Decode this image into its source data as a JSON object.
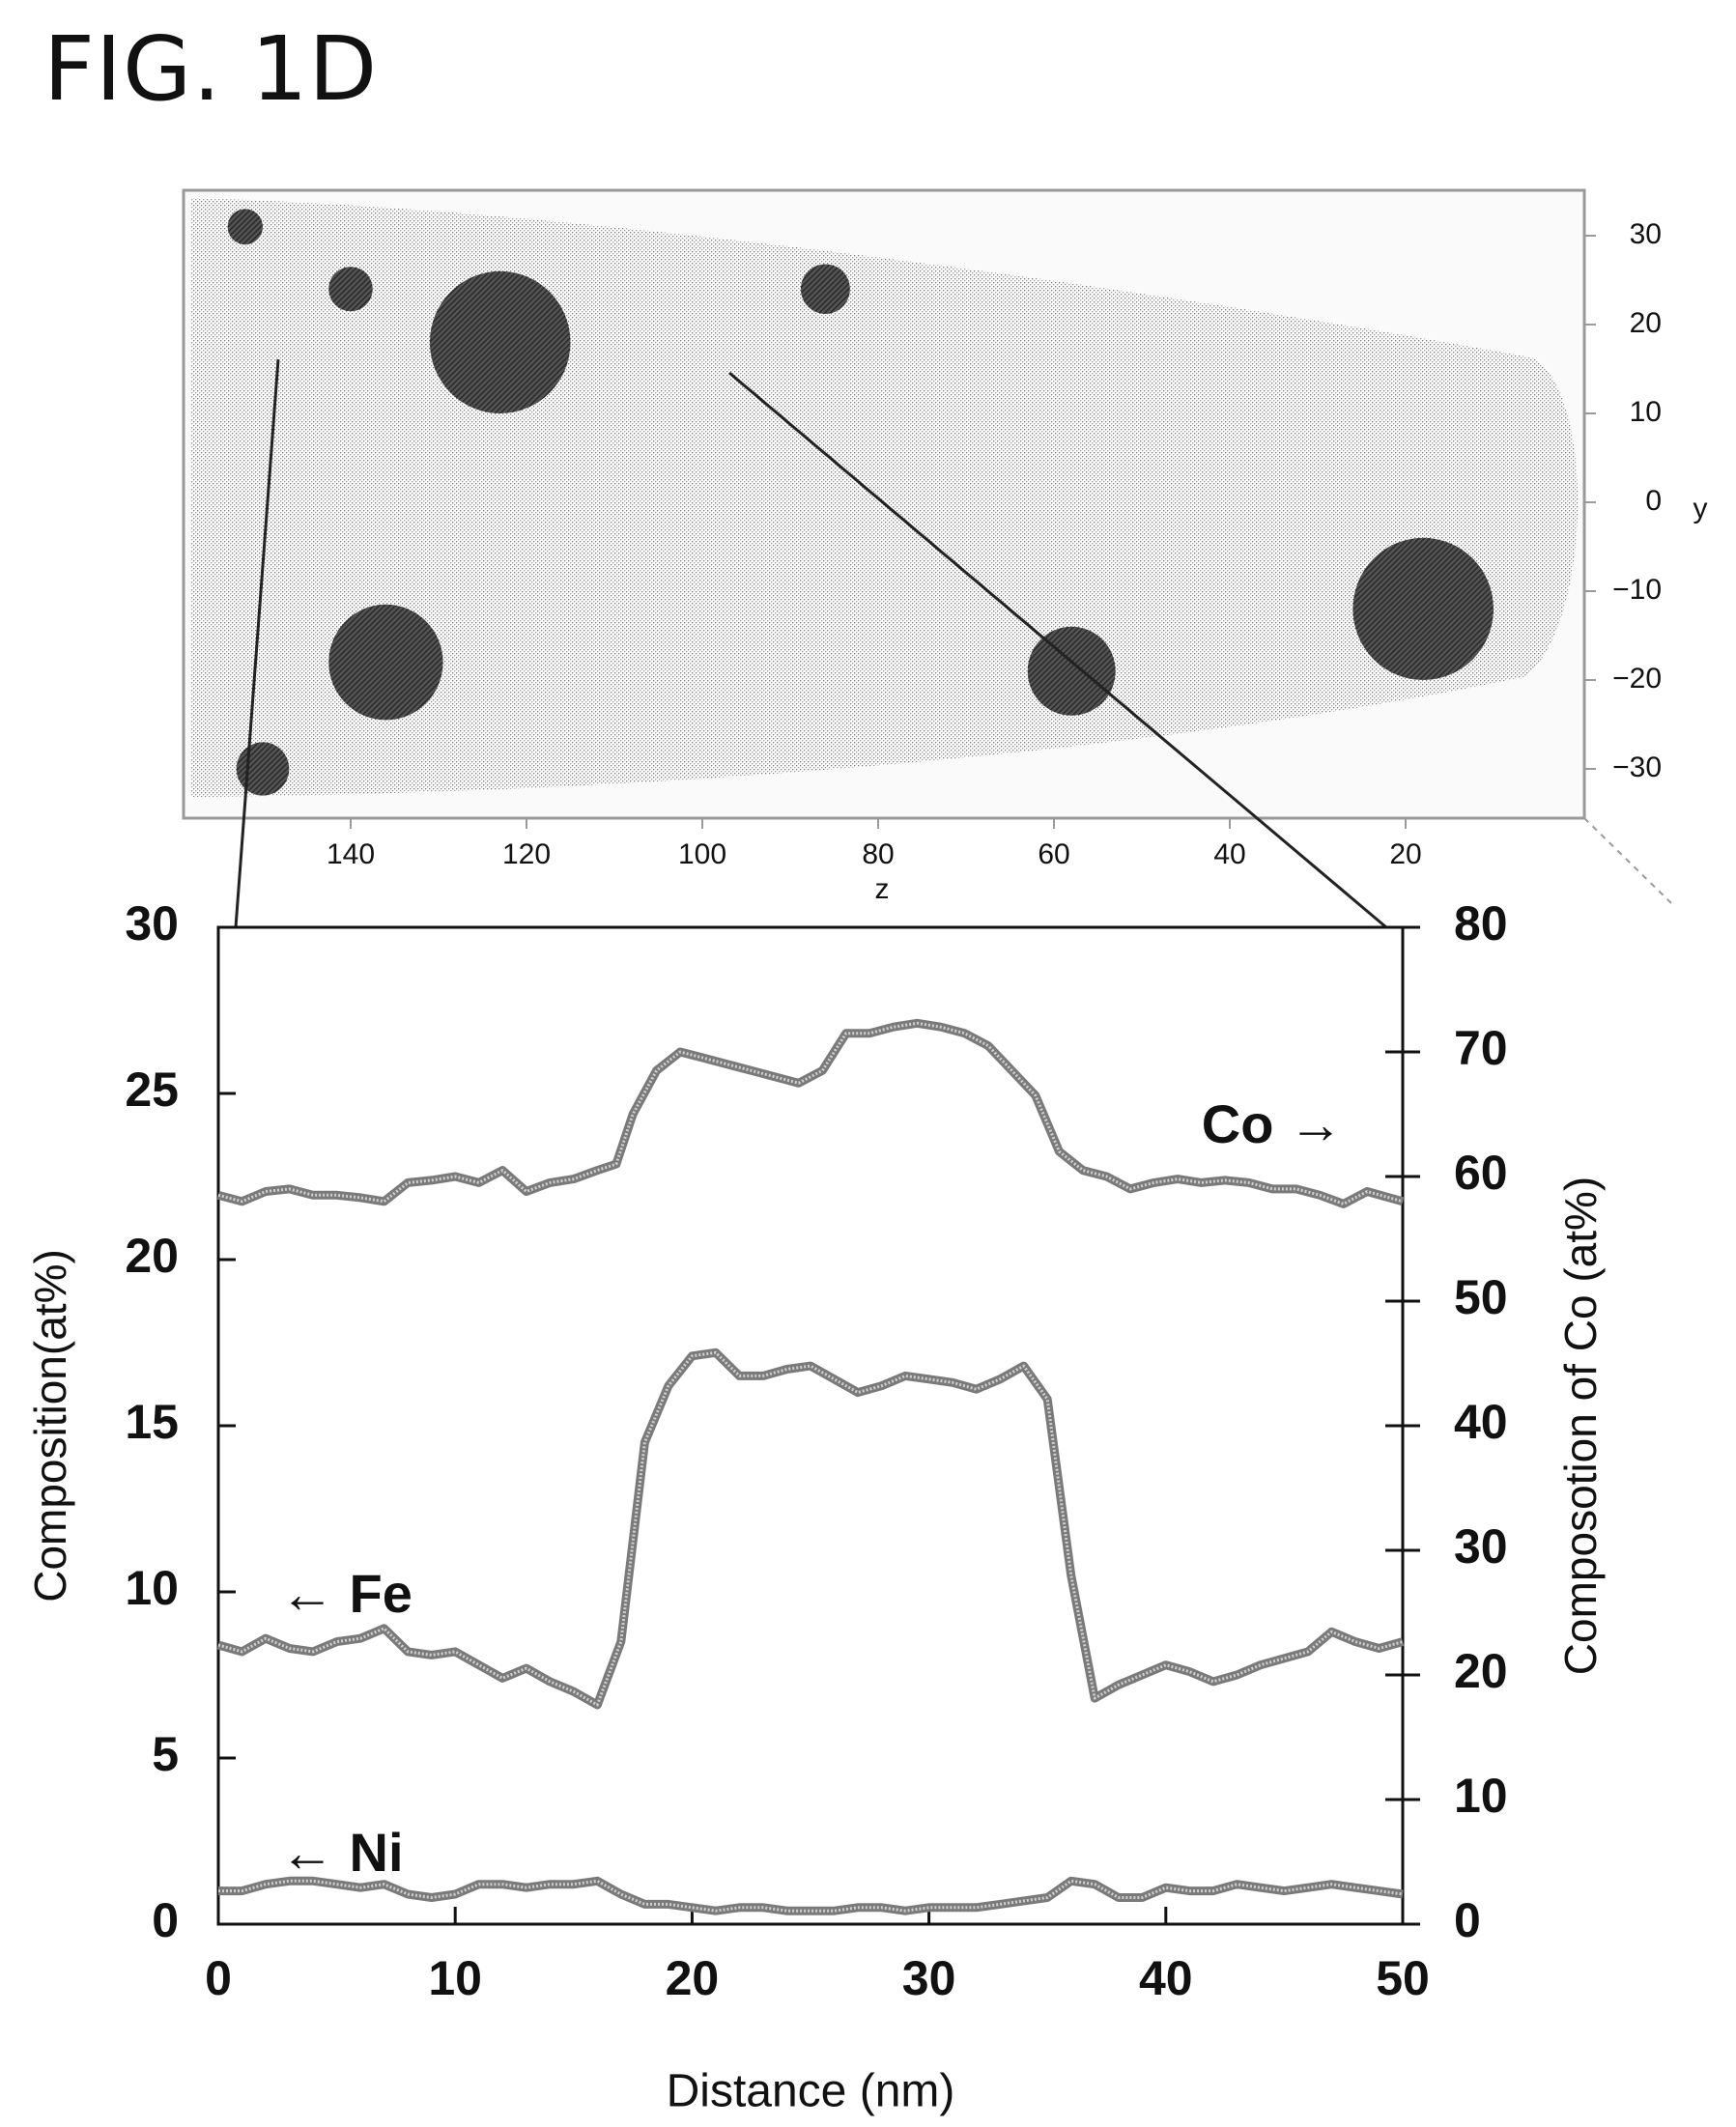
{
  "figure": {
    "title": "FIG. 1D"
  },
  "map": {
    "x_label": "z",
    "y_label": "y",
    "x_ticks": [
      140,
      120,
      100,
      80,
      60,
      40,
      20
    ],
    "y_ticks": [
      30,
      20,
      10,
      0,
      -10,
      -20,
      -30
    ],
    "particles": [
      {
        "z": 152,
        "y": 31,
        "r": 2
      },
      {
        "z": 140,
        "y": 24,
        "r": 2.5
      },
      {
        "z": 123,
        "y": 18,
        "r": 8
      },
      {
        "z": 86,
        "y": 24,
        "r": 2.8
      },
      {
        "z": 136,
        "y": -18,
        "r": 6.5
      },
      {
        "z": 58,
        "y": -19,
        "r": 5
      },
      {
        "z": 18,
        "y": -12,
        "r": 8
      },
      {
        "z": 150,
        "y": -30,
        "r": 3
      }
    ]
  },
  "chart_data": {
    "type": "line",
    "xlabel": "Distance (nm)",
    "ylabel": "Composition(at%)",
    "y2label": "Composotion of Co (at%)",
    "xlim": [
      0,
      50
    ],
    "ylim": [
      0,
      30
    ],
    "y2lim": [
      0,
      80
    ],
    "x_ticks": [
      0,
      10,
      20,
      30,
      40,
      50
    ],
    "y_ticks": [
      0,
      5,
      10,
      15,
      20,
      25,
      30
    ],
    "y2_ticks": [
      0,
      10,
      20,
      30,
      40,
      50,
      60,
      70,
      80
    ],
    "series": [
      {
        "name": "Co",
        "axis": "right",
        "annotation": "Co →",
        "x": [
          0,
          1,
          2,
          3,
          4,
          5,
          6,
          7,
          8,
          9,
          10,
          11,
          12,
          13,
          14,
          15,
          16,
          16.8,
          17.5,
          18.5,
          19.5,
          20.5,
          21.5,
          22.5,
          23.5,
          24.5,
          25.5,
          26.5,
          27.5,
          28.5,
          29.5,
          30.5,
          31.5,
          32.5,
          33.5,
          34.5,
          35.5,
          36.5,
          37.5,
          38.5,
          39.5,
          40.5,
          41.5,
          42.5,
          43.5,
          44.5,
          45.5,
          46.5,
          47.5,
          48.5,
          50
        ],
        "values": [
          58.5,
          58.0,
          58.8,
          59.0,
          58.5,
          58.5,
          58.3,
          58.0,
          59.5,
          59.7,
          60.0,
          59.5,
          60.5,
          58.8,
          59.5,
          59.8,
          60.5,
          61.0,
          65.0,
          68.5,
          70.0,
          69.5,
          69.0,
          68.5,
          68.0,
          67.5,
          68.5,
          71.5,
          71.5,
          72.0,
          72.3,
          72.0,
          71.5,
          70.5,
          68.5,
          66.5,
          62.0,
          60.5,
          60.0,
          59.0,
          59.5,
          59.8,
          59.5,
          59.7,
          59.5,
          59.0,
          59.0,
          58.5,
          57.8,
          58.8,
          58.0
        ]
      },
      {
        "name": "Fe",
        "axis": "left",
        "annotation": "← Fe",
        "x": [
          0,
          1,
          2,
          3,
          4,
          5,
          6,
          7,
          8,
          9,
          10,
          11,
          12,
          13,
          14,
          15,
          16,
          17,
          18,
          19,
          20,
          21,
          22,
          23,
          24,
          25,
          26,
          27,
          28,
          29,
          30,
          31,
          32,
          33,
          34,
          35,
          36,
          37,
          38,
          39,
          40,
          41,
          42,
          43,
          44,
          45,
          46,
          47,
          48,
          49,
          50
        ],
        "values": [
          8.4,
          8.2,
          8.6,
          8.3,
          8.2,
          8.5,
          8.6,
          8.9,
          8.2,
          8.1,
          8.2,
          7.8,
          7.4,
          7.7,
          7.3,
          7.0,
          6.6,
          8.5,
          14.5,
          16.2,
          17.1,
          17.2,
          16.5,
          16.5,
          16.7,
          16.8,
          16.4,
          16.0,
          16.2,
          16.5,
          16.4,
          16.3,
          16.1,
          16.4,
          16.8,
          15.8,
          10.5,
          6.8,
          7.2,
          7.5,
          7.8,
          7.6,
          7.3,
          7.5,
          7.8,
          8.0,
          8.2,
          8.8,
          8.5,
          8.3,
          8.5
        ]
      },
      {
        "name": "Ni",
        "axis": "left",
        "annotation": "← Ni",
        "x": [
          0,
          1,
          2,
          3,
          4,
          5,
          6,
          7,
          8,
          9,
          10,
          11,
          12,
          13,
          14,
          15,
          16,
          17,
          18,
          19,
          20,
          21,
          22,
          23,
          24,
          25,
          26,
          27,
          28,
          29,
          30,
          31,
          32,
          33,
          34,
          35,
          36,
          37,
          38,
          39,
          40,
          41,
          42,
          43,
          44,
          45,
          46,
          47,
          48,
          49,
          50
        ],
        "values": [
          1.0,
          1.0,
          1.2,
          1.3,
          1.3,
          1.2,
          1.1,
          1.2,
          0.9,
          0.8,
          0.9,
          1.2,
          1.2,
          1.1,
          1.2,
          1.2,
          1.3,
          0.9,
          0.6,
          0.6,
          0.5,
          0.4,
          0.5,
          0.5,
          0.4,
          0.4,
          0.4,
          0.5,
          0.5,
          0.4,
          0.5,
          0.5,
          0.5,
          0.6,
          0.7,
          0.8,
          1.3,
          1.2,
          0.8,
          0.8,
          1.1,
          1.0,
          1.0,
          1.2,
          1.1,
          1.0,
          1.1,
          1.2,
          1.1,
          1.0,
          0.9
        ]
      }
    ]
  }
}
